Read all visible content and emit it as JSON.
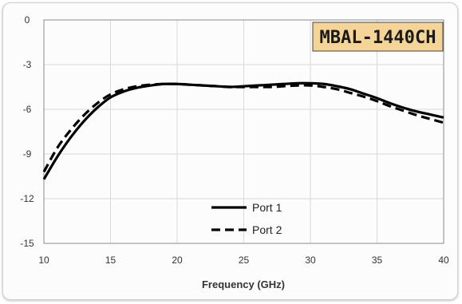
{
  "chart_data": {
    "type": "line",
    "title": "",
    "xlabel": "Frequency (GHz)",
    "ylabel": "",
    "xlim": [
      10,
      40
    ],
    "ylim": [
      -15,
      0
    ],
    "xticks": [
      10,
      15,
      20,
      25,
      30,
      35,
      40
    ],
    "yticks": [
      0,
      -3,
      -6,
      -9,
      -12,
      -15
    ],
    "grid": true,
    "legend": "bottom-center",
    "badge": "MBAL-1440CH",
    "colors": {
      "line": "#000000",
      "badge_bg": "#f5d597",
      "badge_border": "#444444",
      "grid": "#d9d9d9"
    },
    "series": [
      {
        "name": "Port 1",
        "style": "solid",
        "x": [
          10,
          11,
          12,
          13,
          14,
          15,
          16,
          17,
          18,
          19,
          20,
          21,
          22,
          23,
          24,
          25,
          26,
          27,
          28,
          29,
          30,
          31,
          32,
          33,
          34,
          35,
          36,
          37,
          38,
          39,
          40
        ],
        "y": [
          -10.7,
          -9.2,
          -7.9,
          -6.8,
          -5.9,
          -5.2,
          -4.8,
          -4.55,
          -4.4,
          -4.3,
          -4.3,
          -4.35,
          -4.4,
          -4.45,
          -4.5,
          -4.45,
          -4.4,
          -4.35,
          -4.3,
          -4.25,
          -4.25,
          -4.3,
          -4.45,
          -4.65,
          -4.95,
          -5.25,
          -5.6,
          -5.9,
          -6.15,
          -6.35,
          -6.55
        ]
      },
      {
        "name": "Port 2",
        "style": "dashed",
        "x": [
          10,
          11,
          12,
          13,
          14,
          15,
          16,
          17,
          18,
          19,
          20,
          21,
          22,
          23,
          24,
          25,
          26,
          27,
          28,
          29,
          30,
          31,
          32,
          33,
          34,
          35,
          36,
          37,
          38,
          39,
          40
        ],
        "y": [
          -10.2,
          -8.6,
          -7.4,
          -6.4,
          -5.6,
          -5.0,
          -4.65,
          -4.45,
          -4.35,
          -4.3,
          -4.3,
          -4.35,
          -4.4,
          -4.45,
          -4.5,
          -4.5,
          -4.5,
          -4.5,
          -4.45,
          -4.4,
          -4.4,
          -4.5,
          -4.65,
          -4.9,
          -5.15,
          -5.45,
          -5.8,
          -6.1,
          -6.4,
          -6.65,
          -6.9
        ]
      }
    ]
  }
}
